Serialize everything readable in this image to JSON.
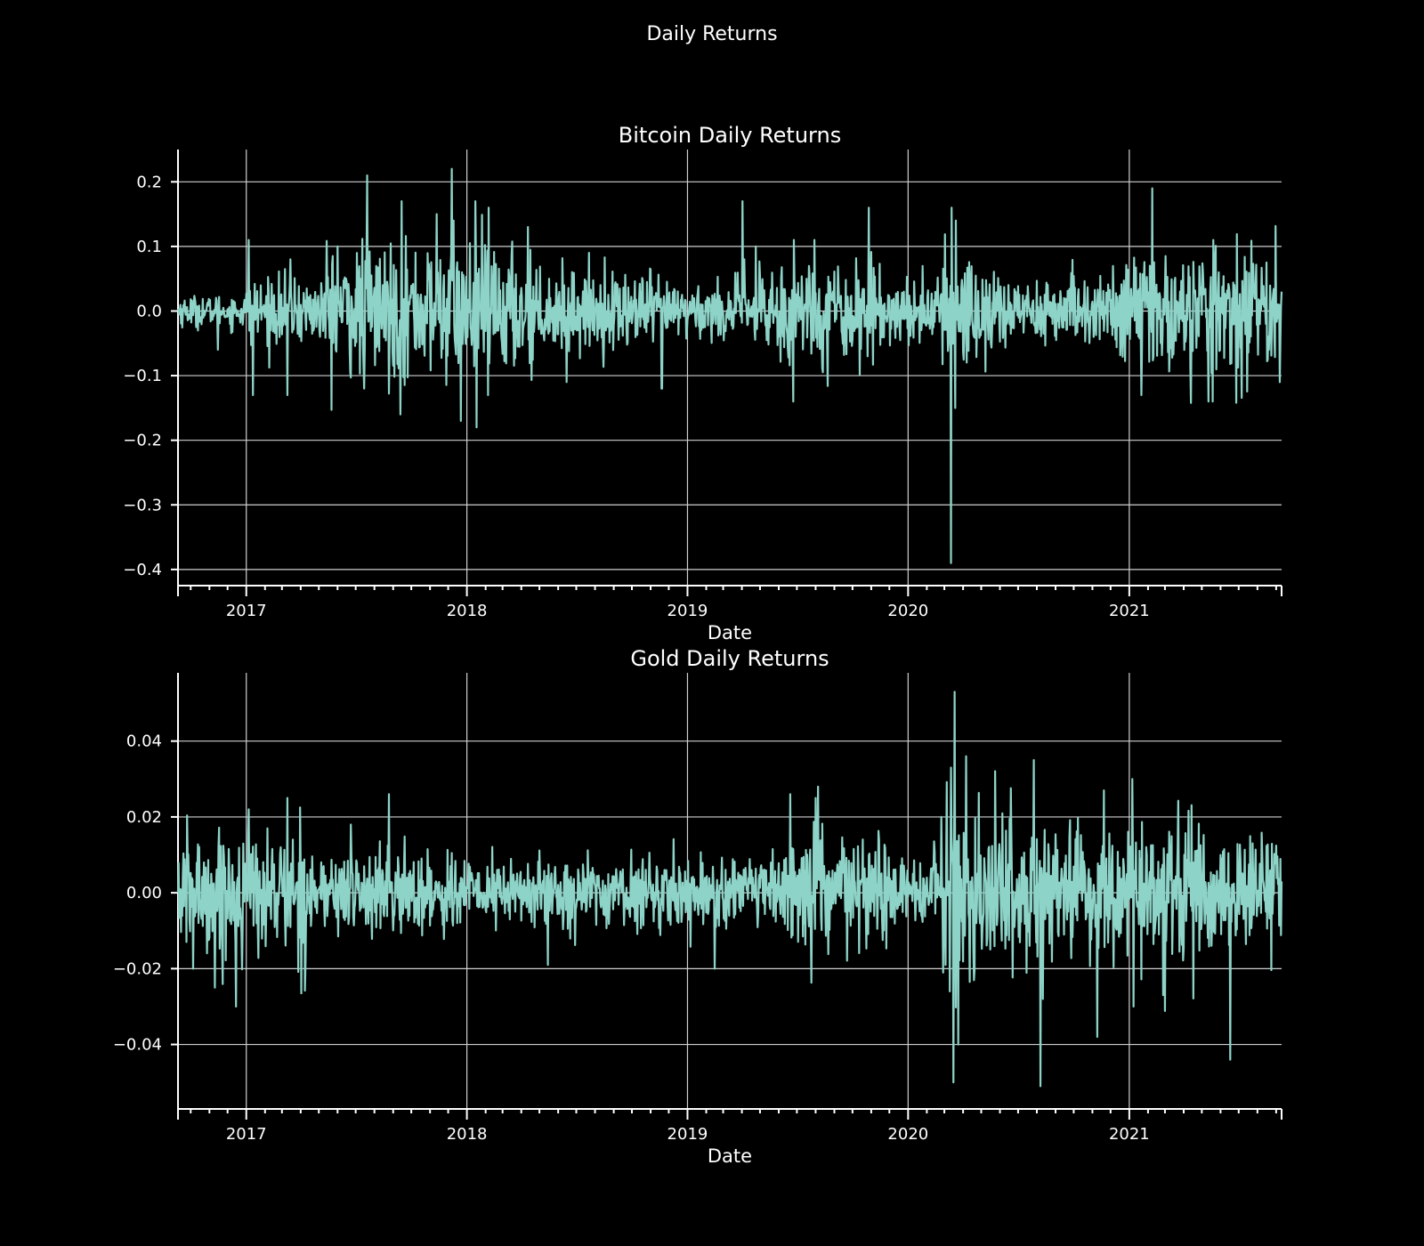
{
  "figure_title": "Daily Returns",
  "colors": {
    "background": "#000000",
    "series": "#8dd3c7",
    "grid": "#cfcfcf",
    "text": "#ffffff"
  },
  "chart_data": [
    {
      "type": "line",
      "title": "Bitcoin Daily Returns",
      "xlabel": "Date",
      "ylabel": "",
      "xlim": [
        "2016-09-10",
        "2021-09-10"
      ],
      "ylim": [
        -0.425,
        0.25
      ],
      "x_ticks": [
        "2017",
        "2018",
        "2019",
        "2020",
        "2021"
      ],
      "y_ticks": [
        0.2,
        0.1,
        0.0,
        -0.1,
        -0.2,
        -0.3,
        -0.4
      ],
      "y_tick_labels": [
        "0.2",
        "0.1",
        "0.0",
        "−0.1",
        "−0.2",
        "−0.3",
        "−0.4"
      ],
      "grid": true,
      "series": [
        {
          "x": [
            "2016-09-10",
            "2016-11-15",
            "2016-12-05",
            "2017-01-05",
            "2017-01-12",
            "2017-03-10",
            "2017-03-15",
            "2017-06-01",
            "2017-07-15",
            "2017-07-20",
            "2017-09-13",
            "2017-09-15",
            "2017-11-12",
            "2017-12-07",
            "2017-12-10",
            "2017-12-22",
            "2018-01-15",
            "2018-01-17",
            "2018-02-05",
            "2018-02-06",
            "2018-04-12",
            "2018-06-15",
            "2018-11-19",
            "2018-11-20",
            "2019-04-02",
            "2019-04-05",
            "2019-06-25",
            "2019-06-26",
            "2019-07-30",
            "2019-10-26",
            "2019-10-28",
            "2020-03-12",
            "2020-03-13",
            "2020-03-19",
            "2020-03-20",
            "2021-02-08",
            "2021-02-10",
            "2021-01-21",
            "2021-05-12",
            "2021-05-19",
            "2021-05-20",
            "2021-09-07",
            "2021-09-10"
          ],
          "y": [
            0.0,
            -0.06,
            -0.02,
            0.11,
            -0.13,
            -0.13,
            0.08,
            0.1,
            -0.12,
            0.21,
            -0.16,
            0.17,
            0.15,
            0.22,
            0.14,
            -0.17,
            0.17,
            -0.18,
            -0.13,
            0.16,
            0.13,
            -0.11,
            -0.12,
            -0.12,
            0.17,
            0.08,
            -0.14,
            0.11,
            0.11,
            -0.07,
            0.16,
            -0.39,
            0.16,
            -0.15,
            0.14,
            0.19,
            -0.07,
            -0.13,
            -0.14,
            -0.14,
            0.11,
            -0.11,
            0.03
          ]
        }
      ]
    },
    {
      "type": "line",
      "title": "Gold Daily Returns",
      "xlabel": "Date",
      "ylabel": "",
      "xlim": [
        "2016-09-10",
        "2021-09-10"
      ],
      "ylim": [
        -0.057,
        0.058
      ],
      "x_ticks": [
        "2017",
        "2018",
        "2019",
        "2020",
        "2021"
      ],
      "y_ticks": [
        0.04,
        0.02,
        0.0,
        -0.02,
        -0.04
      ],
      "y_tick_labels": [
        "0.04",
        "0.02",
        "0.00",
        "−0.02",
        "−0.04"
      ],
      "grid": true,
      "series": [
        {
          "x": [
            "2016-09-10",
            "2016-10-05",
            "2016-11-10",
            "2016-12-15",
            "2017-01-05",
            "2017-03-10",
            "2017-06-23",
            "2017-08-25",
            "2018-05-15",
            "2019-02-15",
            "2019-06-20",
            "2019-08-01",
            "2019-08-05",
            "2020-02-25",
            "2020-03-10",
            "2020-03-12",
            "2020-03-16",
            "2020-03-18",
            "2020-03-24",
            "2020-04-06",
            "2020-07-27",
            "2020-08-07",
            "2020-08-11",
            "2020-11-09",
            "2020-11-20",
            "2021-01-06",
            "2021-01-08",
            "2021-02-26",
            "2021-06-17",
            "2021-09-10"
          ],
          "y": [
            0.0,
            -0.02,
            -0.025,
            -0.03,
            0.022,
            0.025,
            0.018,
            0.026,
            -0.019,
            -0.02,
            0.026,
            0.025,
            0.028,
            0.02,
            -0.026,
            0.033,
            -0.05,
            0.053,
            -0.04,
            0.036,
            0.035,
            -0.051,
            -0.028,
            -0.038,
            0.027,
            0.03,
            -0.03,
            -0.027,
            -0.044,
            0.003
          ]
        }
      ]
    }
  ]
}
